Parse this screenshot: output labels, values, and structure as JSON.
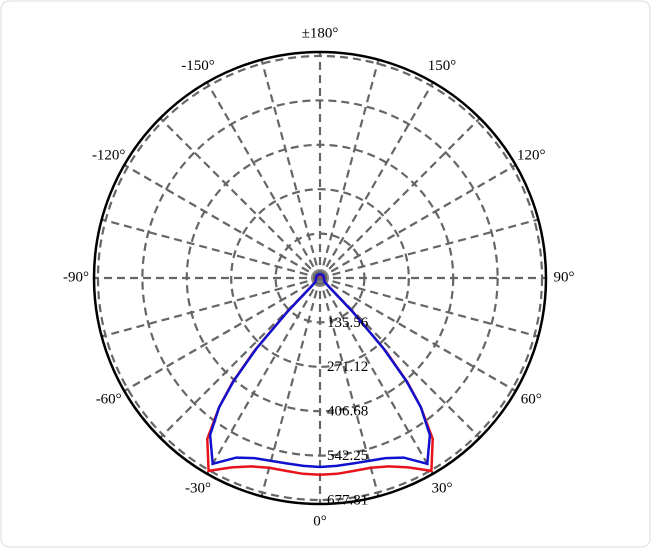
{
  "chart_data": {
    "type": "polar",
    "x": [
      -180,
      -150,
      -120,
      -90,
      -60,
      -50,
      -46,
      -44,
      -42,
      -40,
      -38,
      -35,
      -30,
      -25,
      -20,
      -15,
      -10,
      -5,
      0,
      5,
      10,
      15,
      20,
      25,
      30,
      35,
      38,
      40,
      42,
      44,
      46,
      50,
      60,
      90,
      120,
      150,
      180
    ],
    "series": [
      {
        "color": "#e8141c",
        "values": [
          10,
          10,
          10,
          12,
          15,
          20,
          40,
          150,
          300,
          415,
          500,
          600,
          680,
          638,
          612,
          600,
          598,
          600,
          601,
          600,
          598,
          600,
          612,
          638,
          680,
          600,
          500,
          415,
          300,
          150,
          40,
          20,
          15,
          12,
          10,
          10,
          10
        ]
      },
      {
        "color": "#1010d0",
        "values": [
          12,
          12,
          12,
          12,
          14,
          18,
          35,
          140,
          290,
          410,
          500,
          585,
          655,
          605,
          585,
          578,
          575,
          576,
          577,
          576,
          575,
          578,
          585,
          605,
          655,
          585,
          500,
          410,
          290,
          140,
          35,
          18,
          14,
          12,
          12,
          12,
          12
        ]
      }
    ],
    "rlim": [
      0,
      690
    ],
    "rticks": [
      135.56,
      271.12,
      406.68,
      542.25,
      677.81
    ],
    "xticks": [
      {
        "value": 0,
        "label": "0°"
      },
      {
        "value": 30,
        "label": "30°"
      },
      {
        "value": 60,
        "label": "60°"
      },
      {
        "value": 90,
        "label": "90°"
      },
      {
        "value": 120,
        "label": "120°"
      },
      {
        "value": 150,
        "label": "150°"
      },
      {
        "value": 180,
        "label": "±180°"
      },
      {
        "value": -150,
        "label": "-150°"
      },
      {
        "value": -120,
        "label": "-120°"
      },
      {
        "value": -90,
        "label": "-90°"
      },
      {
        "value": -60,
        "label": "-60°"
      },
      {
        "value": -30,
        "label": "-30°"
      }
    ],
    "grid": true
  }
}
